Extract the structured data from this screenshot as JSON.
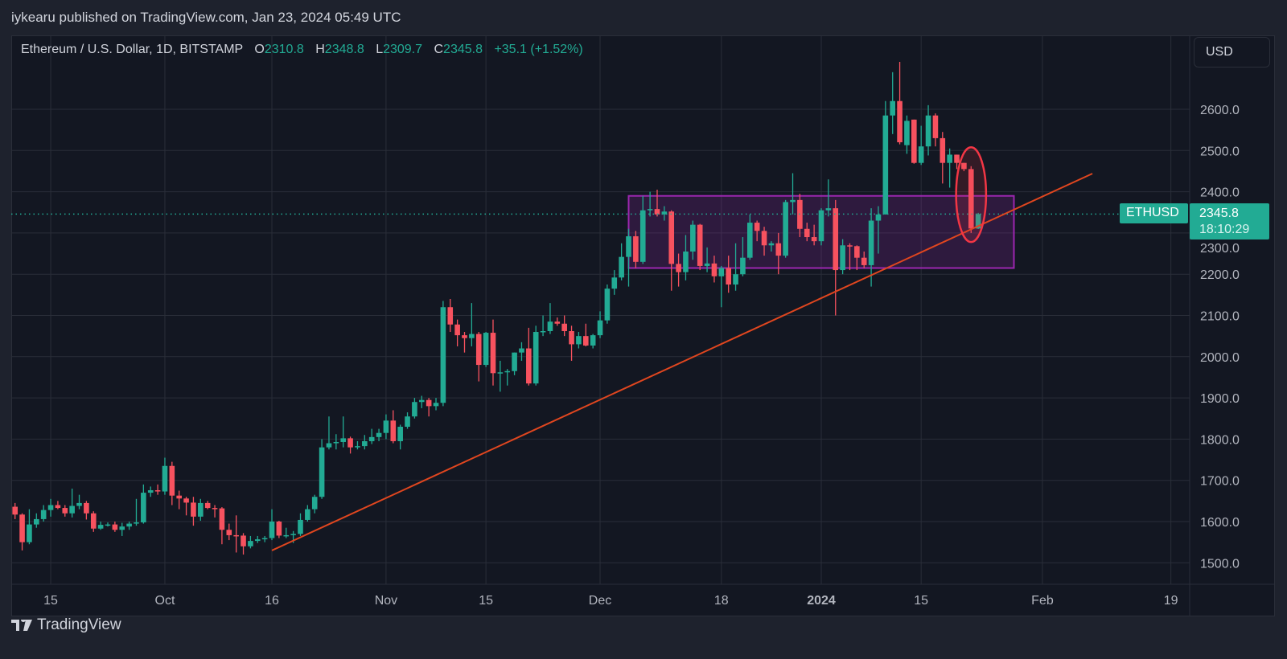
{
  "header": {
    "published": "iykearu published on TradingView.com, Jan 23, 2024 05:49 UTC"
  },
  "legend": {
    "symbol": "Ethereum / U.S. Dollar, 1D, BITSTAMP",
    "o_label": "O",
    "o": "2310.8",
    "h_label": "H",
    "h": "2348.8",
    "l_label": "L",
    "l": "2309.7",
    "c_label": "C",
    "c": "2345.8",
    "change": "+35.1 (+1.52%)"
  },
  "currency_button": "USD",
  "price_label": {
    "symbol": "ETHUSD",
    "price": "2345.8",
    "countdown": "18:10:29"
  },
  "logo": {
    "text": "TradingView"
  },
  "colors": {
    "up": "#22ab94",
    "down": "#f7525f",
    "background": "#131722",
    "grid": "#2a2e39",
    "trendline": "#e0461f",
    "zone": "#9c27b0",
    "highlight": "#f23645"
  },
  "chart_data": {
    "type": "candlestick",
    "title": "",
    "ylim": [
      1450,
      2730
    ],
    "yticks": [
      1500,
      1600,
      1700,
      1800,
      1900,
      2000,
      2100,
      2200,
      2300,
      2400,
      2500,
      2600
    ],
    "ytick_labels": [
      "1500.0",
      "1600.0",
      "1700.0",
      "1800.0",
      "1900.0",
      "2000.0",
      "2100.0",
      "2200.0",
      "2300.0",
      "2400.0",
      "2500.0",
      "2600.0"
    ],
    "xticks": [
      {
        "date": "2023-09-15",
        "label": "15"
      },
      {
        "date": "2023-10-01",
        "label": "Oct"
      },
      {
        "date": "2023-10-16",
        "label": "16"
      },
      {
        "date": "2023-11-01",
        "label": "Nov"
      },
      {
        "date": "2023-11-15",
        "label": "15"
      },
      {
        "date": "2023-12-01",
        "label": "Dec"
      },
      {
        "date": "2023-12-18",
        "label": "18"
      },
      {
        "date": "2024-01-01",
        "label": "2024",
        "bold": true
      },
      {
        "date": "2024-01-15",
        "label": "15"
      },
      {
        "date": "2024-02-01",
        "label": "Feb"
      },
      {
        "date": "2024-02-19",
        "label": "19"
      }
    ],
    "grid": true,
    "last_price": 2345.8,
    "columns": [
      "date",
      "open",
      "high",
      "low",
      "close"
    ],
    "candles": [
      [
        "2023-09-10",
        1636,
        1645,
        1606,
        1617
      ],
      [
        "2023-09-11",
        1617,
        1620,
        1530,
        1550
      ],
      [
        "2023-09-12",
        1550,
        1630,
        1545,
        1593
      ],
      [
        "2023-09-13",
        1593,
        1620,
        1585,
        1606
      ],
      [
        "2023-09-14",
        1606,
        1640,
        1600,
        1628
      ],
      [
        "2023-09-15",
        1628,
        1655,
        1612,
        1640
      ],
      [
        "2023-09-16",
        1640,
        1650,
        1630,
        1633
      ],
      [
        "2023-09-17",
        1633,
        1640,
        1612,
        1620
      ],
      [
        "2023-09-18",
        1620,
        1680,
        1610,
        1638
      ],
      [
        "2023-09-19",
        1638,
        1665,
        1630,
        1645
      ],
      [
        "2023-09-20",
        1645,
        1650,
        1605,
        1620
      ],
      [
        "2023-09-21",
        1620,
        1625,
        1575,
        1583
      ],
      [
        "2023-09-22",
        1583,
        1600,
        1580,
        1592
      ],
      [
        "2023-09-23",
        1592,
        1598,
        1588,
        1593
      ],
      [
        "2023-09-24",
        1593,
        1600,
        1575,
        1580
      ],
      [
        "2023-09-25",
        1580,
        1597,
        1565,
        1588
      ],
      [
        "2023-09-26",
        1588,
        1600,
        1580,
        1595
      ],
      [
        "2023-09-27",
        1595,
        1655,
        1590,
        1598
      ],
      [
        "2023-09-28",
        1598,
        1690,
        1595,
        1670
      ],
      [
        "2023-09-29",
        1670,
        1685,
        1660,
        1676
      ],
      [
        "2023-09-30",
        1676,
        1690,
        1665,
        1673
      ],
      [
        "2023-10-01",
        1673,
        1755,
        1665,
        1735
      ],
      [
        "2023-10-02",
        1735,
        1745,
        1640,
        1663
      ],
      [
        "2023-10-03",
        1663,
        1675,
        1630,
        1656
      ],
      [
        "2023-10-04",
        1656,
        1660,
        1615,
        1646
      ],
      [
        "2023-10-05",
        1646,
        1660,
        1590,
        1612
      ],
      [
        "2023-10-06",
        1612,
        1655,
        1602,
        1645
      ],
      [
        "2023-10-07",
        1645,
        1650,
        1630,
        1633
      ],
      [
        "2023-10-08",
        1633,
        1640,
        1610,
        1632
      ],
      [
        "2023-10-09",
        1632,
        1635,
        1545,
        1580
      ],
      [
        "2023-10-10",
        1580,
        1595,
        1555,
        1567
      ],
      [
        "2023-10-11",
        1567,
        1615,
        1525,
        1566
      ],
      [
        "2023-10-12",
        1566,
        1572,
        1520,
        1540
      ],
      [
        "2023-10-13",
        1540,
        1565,
        1535,
        1553
      ],
      [
        "2023-10-14",
        1553,
        1565,
        1548,
        1557
      ],
      [
        "2023-10-15",
        1557,
        1565,
        1550,
        1560
      ],
      [
        "2023-10-16",
        1560,
        1630,
        1555,
        1600
      ],
      [
        "2023-10-17",
        1600,
        1602,
        1560,
        1566
      ],
      [
        "2023-10-18",
        1566,
        1585,
        1560,
        1567
      ],
      [
        "2023-10-19",
        1567,
        1577,
        1548,
        1570
      ],
      [
        "2023-10-20",
        1570,
        1620,
        1565,
        1604
      ],
      [
        "2023-10-21",
        1604,
        1640,
        1600,
        1630
      ],
      [
        "2023-10-22",
        1630,
        1665,
        1620,
        1660
      ],
      [
        "2023-10-23",
        1660,
        1800,
        1655,
        1780
      ],
      [
        "2023-10-24",
        1780,
        1855,
        1775,
        1790
      ],
      [
        "2023-10-25",
        1790,
        1812,
        1775,
        1793
      ],
      [
        "2023-10-26",
        1793,
        1855,
        1780,
        1802
      ],
      [
        "2023-10-27",
        1802,
        1806,
        1765,
        1780
      ],
      [
        "2023-10-28",
        1780,
        1795,
        1775,
        1783
      ],
      [
        "2023-10-29",
        1783,
        1810,
        1775,
        1795
      ],
      [
        "2023-10-30",
        1795,
        1825,
        1788,
        1805
      ],
      [
        "2023-10-31",
        1805,
        1825,
        1795,
        1815
      ],
      [
        "2023-11-01",
        1815,
        1860,
        1800,
        1845
      ],
      [
        "2023-11-02",
        1845,
        1870,
        1790,
        1795
      ],
      [
        "2023-11-03",
        1795,
        1835,
        1775,
        1830
      ],
      [
        "2023-11-04",
        1830,
        1865,
        1825,
        1855
      ],
      [
        "2023-11-05",
        1855,
        1900,
        1850,
        1890
      ],
      [
        "2023-11-06",
        1890,
        1905,
        1875,
        1895
      ],
      [
        "2023-11-07",
        1895,
        1900,
        1855,
        1880
      ],
      [
        "2023-11-08",
        1880,
        1900,
        1870,
        1888
      ],
      [
        "2023-11-09",
        1888,
        2135,
        1880,
        2120
      ],
      [
        "2023-11-10",
        2120,
        2140,
        2060,
        2078
      ],
      [
        "2023-11-11",
        2078,
        2090,
        2025,
        2052
      ],
      [
        "2023-11-12",
        2052,
        2060,
        2010,
        2045
      ],
      [
        "2023-11-13",
        2045,
        2130,
        2025,
        2055
      ],
      [
        "2023-11-14",
        2055,
        2060,
        1940,
        1980
      ],
      [
        "2023-11-15",
        1980,
        2060,
        1975,
        2058
      ],
      [
        "2023-11-16",
        2058,
        2090,
        1930,
        1960
      ],
      [
        "2023-11-17",
        1960,
        1990,
        1915,
        1962
      ],
      [
        "2023-11-18",
        1962,
        1970,
        1930,
        1965
      ],
      [
        "2023-11-19",
        1965,
        2010,
        1955,
        2010
      ],
      [
        "2023-11-20",
        2010,
        2035,
        1990,
        2020
      ],
      [
        "2023-11-21",
        2020,
        2070,
        1930,
        1935
      ],
      [
        "2023-11-22",
        1935,
        2075,
        1930,
        2060
      ],
      [
        "2023-11-23",
        2060,
        2100,
        2050,
        2062
      ],
      [
        "2023-11-24",
        2062,
        2130,
        2055,
        2085
      ],
      [
        "2023-11-25",
        2085,
        2095,
        2075,
        2080
      ],
      [
        "2023-11-26",
        2080,
        2100,
        2050,
        2062
      ],
      [
        "2023-11-27",
        2062,
        2075,
        1990,
        2030
      ],
      [
        "2023-11-28",
        2030,
        2060,
        2020,
        2050
      ],
      [
        "2023-11-29",
        2050,
        2080,
        2025,
        2027
      ],
      [
        "2023-11-30",
        2027,
        2055,
        2020,
        2052
      ],
      [
        "2023-12-01",
        2052,
        2110,
        2045,
        2088
      ],
      [
        "2023-12-02",
        2088,
        2175,
        2080,
        2165
      ],
      [
        "2023-12-03",
        2165,
        2210,
        2150,
        2192
      ],
      [
        "2023-12-04",
        2192,
        2275,
        2185,
        2242
      ],
      [
        "2023-12-05",
        2242,
        2310,
        2170,
        2292
      ],
      [
        "2023-12-06",
        2292,
        2305,
        2215,
        2230
      ],
      [
        "2023-12-07",
        2230,
        2390,
        2225,
        2355
      ],
      [
        "2023-12-08",
        2355,
        2400,
        2340,
        2358
      ],
      [
        "2023-12-09",
        2358,
        2405,
        2340,
        2345
      ],
      [
        "2023-12-10",
        2345,
        2365,
        2330,
        2352
      ],
      [
        "2023-12-11",
        2352,
        2355,
        2160,
        2225
      ],
      [
        "2023-12-12",
        2225,
        2250,
        2170,
        2205
      ],
      [
        "2023-12-13",
        2205,
        2295,
        2185,
        2255
      ],
      [
        "2023-12-14",
        2255,
        2330,
        2235,
        2320
      ],
      [
        "2023-12-15",
        2320,
        2322,
        2210,
        2220
      ],
      [
        "2023-12-16",
        2220,
        2265,
        2205,
        2226
      ],
      [
        "2023-12-17",
        2226,
        2245,
        2180,
        2195
      ],
      [
        "2023-12-18",
        2195,
        2220,
        2120,
        2215
      ],
      [
        "2023-12-19",
        2215,
        2245,
        2155,
        2175
      ],
      [
        "2023-12-20",
        2175,
        2275,
        2160,
        2200
      ],
      [
        "2023-12-21",
        2200,
        2290,
        2195,
        2240
      ],
      [
        "2023-12-22",
        2240,
        2345,
        2235,
        2325
      ],
      [
        "2023-12-23",
        2325,
        2330,
        2280,
        2305
      ],
      [
        "2023-12-24",
        2305,
        2315,
        2245,
        2270
      ],
      [
        "2023-12-25",
        2270,
        2280,
        2255,
        2275
      ],
      [
        "2023-12-26",
        2275,
        2300,
        2200,
        2245
      ],
      [
        "2023-12-27",
        2245,
        2380,
        2240,
        2375
      ],
      [
        "2023-12-28",
        2375,
        2445,
        2345,
        2380
      ],
      [
        "2023-12-29",
        2380,
        2395,
        2290,
        2310
      ],
      [
        "2023-12-30",
        2310,
        2325,
        2280,
        2290
      ],
      [
        "2023-12-31",
        2290,
        2320,
        2270,
        2280
      ],
      [
        "2024-01-01",
        2280,
        2360,
        2270,
        2355
      ],
      [
        "2024-01-02",
        2355,
        2430,
        2340,
        2360
      ],
      [
        "2024-01-03",
        2360,
        2380,
        2100,
        2210
      ],
      [
        "2024-01-04",
        2210,
        2285,
        2200,
        2270
      ],
      [
        "2024-01-05",
        2270,
        2275,
        2210,
        2268
      ],
      [
        "2024-01-06",
        2268,
        2270,
        2210,
        2240
      ],
      [
        "2024-01-07",
        2240,
        2255,
        2215,
        2222
      ],
      [
        "2024-01-08",
        2222,
        2360,
        2170,
        2330
      ],
      [
        "2024-01-09",
        2330,
        2365,
        2250,
        2345
      ],
      [
        "2024-01-10",
        2345,
        2620,
        2345,
        2585
      ],
      [
        "2024-01-11",
        2585,
        2690,
        2540,
        2620
      ],
      [
        "2024-01-12",
        2620,
        2715,
        2515,
        2520
      ],
      [
        "2024-01-13",
        2513,
        2585,
        2492,
        2572
      ],
      [
        "2024-01-14",
        2575,
        2575,
        2468,
        2470
      ],
      [
        "2024-01-15",
        2470,
        2560,
        2465,
        2510
      ],
      [
        "2024-01-16",
        2510,
        2610,
        2488,
        2585
      ],
      [
        "2024-01-17",
        2585,
        2590,
        2510,
        2530
      ],
      [
        "2024-01-18",
        2530,
        2545,
        2420,
        2470
      ],
      [
        "2024-01-19",
        2470,
        2505,
        2410,
        2490
      ],
      [
        "2024-01-20",
        2490,
        2490,
        2455,
        2470
      ],
      [
        "2024-01-21",
        2470,
        2470,
        2450,
        2455
      ],
      [
        "2024-01-22",
        2455,
        2462,
        2300,
        2310.8
      ],
      [
        "2024-01-23",
        2310.8,
        2348.8,
        2309.7,
        2345.8
      ]
    ],
    "annotations": {
      "zone": {
        "from": "2023-12-05",
        "to": "2024-01-28",
        "top": 2390,
        "bottom": 2215
      },
      "trendline": {
        "from": {
          "date": "2023-10-16",
          "price": 1530
        },
        "to": {
          "date": "2024-02-08",
          "price": 2444
        }
      },
      "ellipse": {
        "center_date": "2024-01-22",
        "center_price": 2393,
        "days_radius": 2.1,
        "price_radius": 115
      }
    }
  }
}
